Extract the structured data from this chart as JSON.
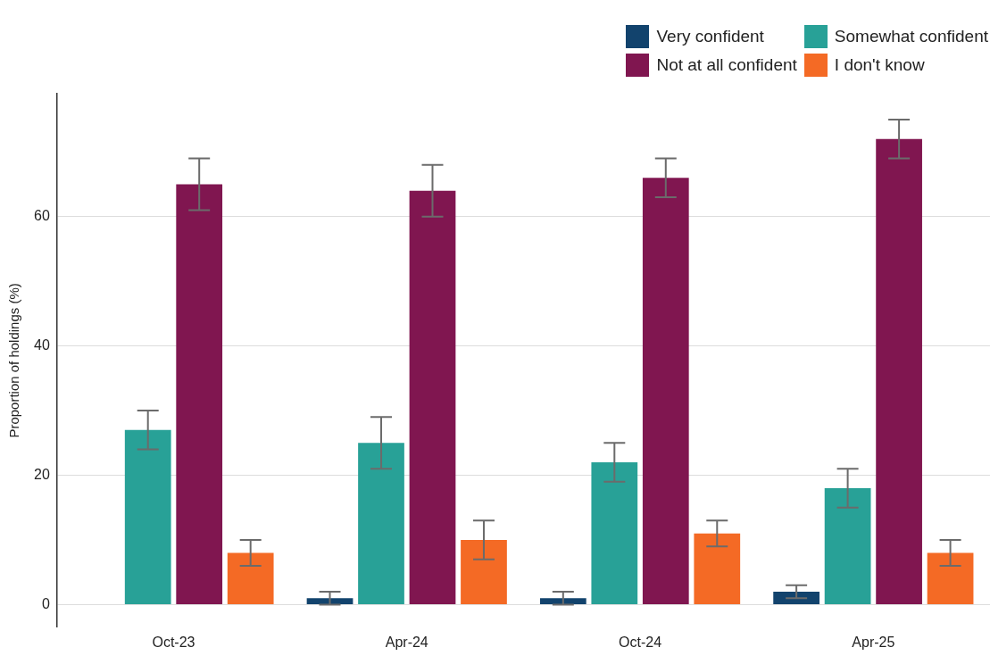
{
  "chart_data": {
    "type": "bar",
    "ylabel": "Proportion of holdings (%)",
    "categories": [
      "Oct-23",
      "Apr-24",
      "Oct-24",
      "Apr-25"
    ],
    "series": [
      {
        "name": "Very confident",
        "color": "#12436d",
        "values": [
          0,
          1,
          1,
          2
        ],
        "errors": [
          null,
          [
            0,
            2
          ],
          [
            0,
            2
          ],
          [
            1,
            3
          ]
        ]
      },
      {
        "name": "Somewhat confident",
        "color": "#28a197",
        "values": [
          27,
          25,
          22,
          18
        ],
        "errors": [
          [
            24,
            30
          ],
          [
            21,
            29
          ],
          [
            19,
            25
          ],
          [
            15,
            21
          ]
        ]
      },
      {
        "name": "Not at all confident",
        "color": "#801650",
        "values": [
          65,
          64,
          66,
          72
        ],
        "errors": [
          [
            61,
            69
          ],
          [
            60,
            68
          ],
          [
            63,
            69
          ],
          [
            69,
            75
          ]
        ]
      },
      {
        "name": "I don't know",
        "color": "#f46a25",
        "values": [
          8,
          10,
          11,
          8
        ],
        "errors": [
          [
            6,
            10
          ],
          [
            7,
            13
          ],
          [
            9,
            13
          ],
          [
            6,
            10
          ]
        ]
      }
    ],
    "ylim": [
      -3.5,
      79
    ],
    "yticks": [
      0,
      20,
      40,
      60
    ],
    "grid": "y",
    "legend": "top right"
  }
}
